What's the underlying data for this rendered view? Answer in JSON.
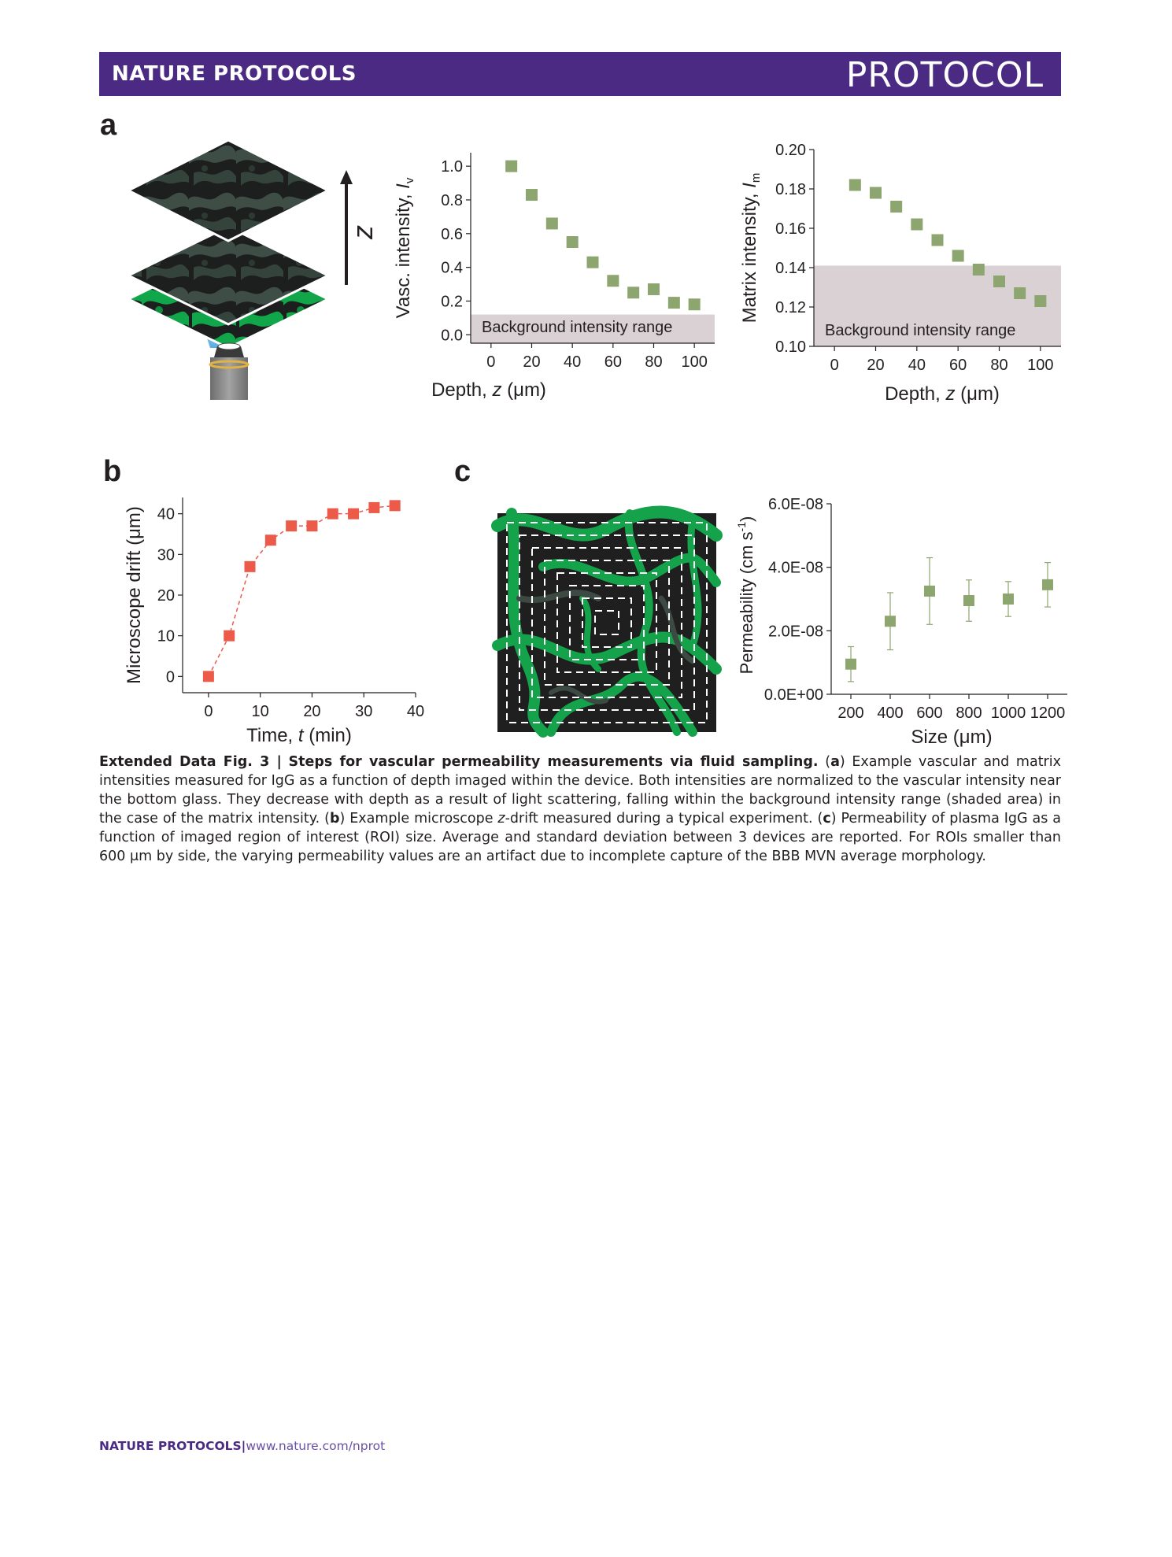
{
  "header": {
    "journal": "NATURE PROTOCOLS",
    "article_type": "PROTOCOL"
  },
  "panel_labels": {
    "a": "a",
    "b": "b",
    "c": "c"
  },
  "panel_a": {
    "schematic_axis_label": "z",
    "background_label": "Background intensity range"
  },
  "chart_data": [
    {
      "id": "a-vascular",
      "type": "scatter",
      "title": "",
      "xlabel": "Depth, z (μm)",
      "ylabel": "Vasc. intensity, I_v",
      "x_ticks": [
        "0",
        "20",
        "40",
        "60",
        "80",
        "100"
      ],
      "y_ticks": [
        "0.0",
        "0.2",
        "0.4",
        "0.6",
        "0.8",
        "1.0"
      ],
      "xlim": [
        -10,
        110
      ],
      "ylim": [
        -0.05,
        1.08
      ],
      "background_range": [
        -0.05,
        0.12
      ],
      "background_label": "Background intensity range",
      "x": [
        10,
        20,
        30,
        40,
        50,
        60,
        70,
        80,
        90,
        100
      ],
      "y": [
        1.0,
        0.83,
        0.66,
        0.55,
        0.43,
        0.32,
        0.25,
        0.27,
        0.19,
        0.18
      ],
      "marker_color": "#8da56f",
      "background_color": "#d9d1d3"
    },
    {
      "id": "a-matrix",
      "type": "scatter",
      "title": "",
      "xlabel": "Depth, z (μm)",
      "ylabel": "Matrix intensity, I_m",
      "x_ticks": [
        "0",
        "20",
        "40",
        "60",
        "80",
        "100"
      ],
      "y_ticks": [
        "0.10",
        "0.12",
        "0.14",
        "0.16",
        "0.18",
        "0.20"
      ],
      "xlim": [
        -10,
        110
      ],
      "ylim": [
        0.1,
        0.2
      ],
      "background_range": [
        0.1,
        0.141
      ],
      "background_label": "Background intensity range",
      "x": [
        10,
        20,
        30,
        40,
        50,
        60,
        70,
        80,
        90,
        100
      ],
      "y": [
        0.182,
        0.178,
        0.171,
        0.162,
        0.154,
        0.146,
        0.139,
        0.133,
        0.127,
        0.123
      ],
      "marker_color": "#8da56f",
      "background_color": "#d9d1d3"
    },
    {
      "id": "b-drift",
      "type": "line",
      "title": "",
      "xlabel": "Time, t (min)",
      "ylabel": "Microscope drift (μm)",
      "x_ticks": [
        "0",
        "10",
        "20",
        "30",
        "40"
      ],
      "y_ticks": [
        "0",
        "10",
        "20",
        "30",
        "40"
      ],
      "xlim": [
        -5,
        40
      ],
      "ylim": [
        -4,
        44
      ],
      "x": [
        0,
        4,
        8,
        12,
        16,
        20,
        24,
        28,
        32,
        36
      ],
      "y": [
        0,
        10,
        27,
        33.5,
        37,
        37,
        40,
        40,
        41.5,
        42
      ],
      "line_style": "dashed",
      "marker_color": "#ec5a4a"
    },
    {
      "id": "c-permeability",
      "type": "scatter",
      "title": "",
      "xlabel": "Size (μm)",
      "ylabel": "Permeability (cm s^-1)",
      "x_ticks": [
        "200",
        "400",
        "600",
        "800",
        "1000",
        "1200"
      ],
      "y_ticks": [
        "0.0E+00",
        "2.0E-08",
        "4.0E-08",
        "6.0E-08"
      ],
      "xlim": [
        100,
        1300
      ],
      "ylim": [
        0,
        6e-08
      ],
      "x": [
        200,
        400,
        600,
        800,
        1000,
        1200
      ],
      "y": [
        9.5e-09,
        2.3e-08,
        3.25e-08,
        2.95e-08,
        3e-08,
        3.45e-08
      ],
      "error": [
        5.5e-09,
        9e-09,
        1.05e-08,
        6.5e-09,
        5.5e-09,
        7e-09
      ],
      "marker_color": "#8da56f"
    }
  ],
  "caption": {
    "label": "Extended Data Fig. 3 |",
    "title": "Steps for vascular permeability measurements via fluid sampling.",
    "p1": " (",
    "a": "a",
    "p2": ") Example vascular and matrix intensities measured for IgG as a function of depth imaged within the device. Both intensities are normalized to the vascular intensity near the bottom glass. They decrease with depth as a result of light scattering, falling within the background intensity range (shaded area) in the case of the matrix intensity. (",
    "b": "b",
    "p3": ") Example microscope ",
    "z": "z",
    "p4": "-drift measured during a typical experiment. (",
    "c": "c",
    "p5": ") Permeability of plasma IgG as a function of imaged region of interest (ROI) size. Average and standard deviation between 3 devices are reported. For ROIs smaller than 600 μm by side, the varying permeability values are an artifact due to incomplete capture of the BBB MVN average morphology."
  },
  "footer": {
    "journal": "NATURE PROTOCOLS",
    "separator": "|",
    "url": "www.nature.com/nprot"
  },
  "colors": {
    "brand_purple": "#4b2a84",
    "marker_green": "#8da56f",
    "marker_red": "#ec5a4a",
    "vessel_green": "#1aa04a"
  }
}
